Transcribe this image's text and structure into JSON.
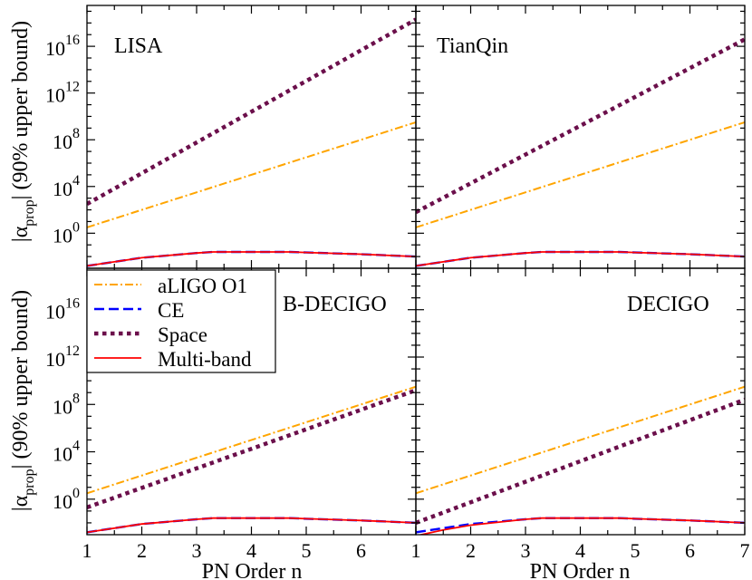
{
  "chart_data": {
    "type": "line",
    "x_scale": "linear",
    "y_scale": "log10",
    "xlim": [
      1,
      7
    ],
    "ylim_log10": [
      -3,
      19.5
    ],
    "x_ticks": [
      "1",
      "2",
      "3",
      "4",
      "5",
      "6",
      "7"
    ],
    "x_ticks_left_panels": [
      "1",
      "2",
      "3",
      "4",
      "5",
      "6"
    ],
    "y_ticks": [
      {
        "exp": 0,
        "base": "10",
        "sup": "0"
      },
      {
        "exp": 4,
        "base": "10",
        "sup": "4"
      },
      {
        "exp": 8,
        "base": "10",
        "sup": "8"
      },
      {
        "exp": 12,
        "base": "10",
        "sup": "12"
      },
      {
        "exp": 16,
        "base": "10",
        "sup": "16"
      }
    ],
    "xlabel": "PN Order n",
    "ylabel": {
      "abs_left": "|α",
      "subscript": "prop",
      "abs_right": "|",
      "rest": " (90% upper bound)"
    },
    "legend": {
      "placement": "top-left of lower-left panel",
      "entries": [
        {
          "label": "aLIGO O1",
          "series": "aligo"
        },
        {
          "label": "CE",
          "series": "ce"
        },
        {
          "label": "Space",
          "series": "space"
        },
        {
          "label": "Multi-band",
          "series": "multiband"
        }
      ]
    },
    "series_styles": {
      "aligo": {
        "color": "#ffa500",
        "dash": "dashdot"
      },
      "ce": {
        "color": "#0000ff",
        "dash": "dashed"
      },
      "space": {
        "color": "#6b0f4b",
        "dash": "dotted"
      },
      "multiband": {
        "color": "#ff0000",
        "dash": "solid"
      }
    },
    "panels": [
      {
        "name": "LISA",
        "series": {
          "aligo": {
            "x": [
              1,
              7
            ],
            "y_log10": [
              0.5,
              9.5
            ]
          },
          "ce": {
            "x": [
              1,
              2,
              3,
              3.3,
              4,
              4.7,
              5,
              6,
              7
            ],
            "y_log10": [
              -2.8,
              -2.1,
              -1.7,
              -1.6,
              -1.6,
              -1.6,
              -1.65,
              -1.8,
              -2.0
            ]
          },
          "space": {
            "x": [
              1,
              7
            ],
            "y_log10": [
              2.5,
              18.3
            ]
          },
          "multiband": {
            "x": [
              1,
              2,
              3,
              3.3,
              4,
              4.7,
              5,
              6,
              7
            ],
            "y_log10": [
              -2.8,
              -2.1,
              -1.7,
              -1.6,
              -1.6,
              -1.6,
              -1.65,
              -1.8,
              -2.0
            ]
          }
        }
      },
      {
        "name": "TianQin",
        "series": {
          "aligo": {
            "x": [
              1,
              7
            ],
            "y_log10": [
              0.5,
              9.5
            ]
          },
          "ce": {
            "x": [
              1,
              2,
              3,
              3.3,
              4,
              4.7,
              5,
              6,
              7
            ],
            "y_log10": [
              -2.8,
              -2.1,
              -1.7,
              -1.6,
              -1.6,
              -1.6,
              -1.65,
              -1.8,
              -2.0
            ]
          },
          "space": {
            "x": [
              1,
              7
            ],
            "y_log10": [
              1.8,
              16.6
            ]
          },
          "multiband": {
            "x": [
              1,
              2,
              3,
              3.3,
              4,
              4.7,
              5,
              6,
              7
            ],
            "y_log10": [
              -2.8,
              -2.1,
              -1.7,
              -1.6,
              -1.6,
              -1.6,
              -1.65,
              -1.8,
              -2.0
            ]
          }
        }
      },
      {
        "name": "B-DECIGO",
        "series": {
          "aligo": {
            "x": [
              1,
              7
            ],
            "y_log10": [
              0.5,
              9.5
            ]
          },
          "ce": {
            "x": [
              1,
              2,
              3,
              3.3,
              4,
              4.7,
              5,
              6,
              7
            ],
            "y_log10": [
              -2.8,
              -2.1,
              -1.7,
              -1.6,
              -1.6,
              -1.6,
              -1.65,
              -1.8,
              -2.0
            ]
          },
          "space": {
            "x": [
              1,
              7
            ],
            "y_log10": [
              -0.7,
              9.2
            ]
          },
          "multiband": {
            "x": [
              1,
              2,
              3,
              3.3,
              4,
              4.7,
              5,
              6,
              7
            ],
            "y_log10": [
              -2.8,
              -2.1,
              -1.7,
              -1.6,
              -1.6,
              -1.6,
              -1.65,
              -1.8,
              -2.0
            ]
          }
        }
      },
      {
        "name": "DECIGO",
        "series": {
          "aligo": {
            "x": [
              1,
              7
            ],
            "y_log10": [
              0.5,
              9.5
            ]
          },
          "ce": {
            "x": [
              1,
              2,
              3,
              3.3,
              4,
              4.7,
              5,
              6,
              7
            ],
            "y_log10": [
              -2.8,
              -2.1,
              -1.7,
              -1.6,
              -1.6,
              -1.6,
              -1.65,
              -1.8,
              -2.0
            ]
          },
          "space": {
            "x": [
              1,
              7
            ],
            "y_log10": [
              -2.0,
              8.4
            ]
          },
          "multiband": {
            "x": [
              1,
              1.5,
              2,
              3,
              3.3,
              4,
              4.7,
              5,
              6,
              7
            ],
            "y_log10": [
              -3.1,
              -2.6,
              -2.2,
              -1.7,
              -1.6,
              -1.6,
              -1.6,
              -1.65,
              -1.8,
              -2.0
            ]
          }
        }
      }
    ]
  }
}
